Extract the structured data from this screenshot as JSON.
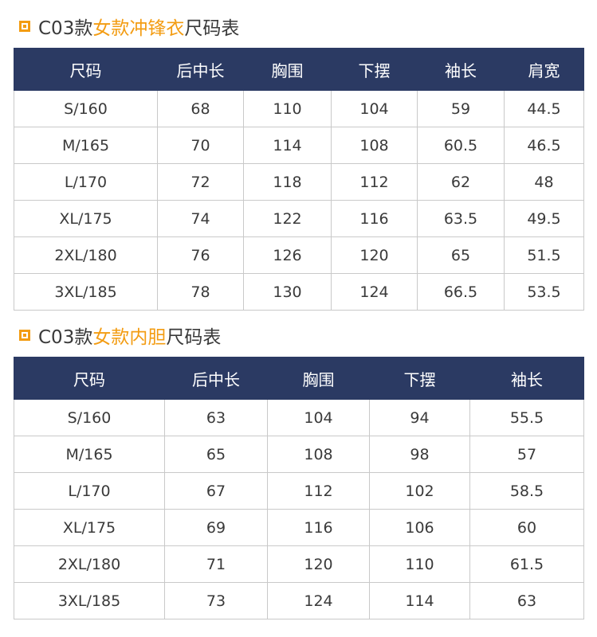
{
  "section1": {
    "title_prefix": "C03款",
    "title_highlight": "女款冲锋衣",
    "title_suffix": "尺码表",
    "headers": [
      "尺码",
      "后中长",
      "胸围",
      "下摆",
      "袖长",
      "肩宽"
    ],
    "rows": [
      [
        "S/160",
        "68",
        "110",
        "104",
        "59",
        "44.5"
      ],
      [
        "M/165",
        "70",
        "114",
        "108",
        "60.5",
        "46.5"
      ],
      [
        "L/170",
        "72",
        "118",
        "112",
        "62",
        "48"
      ],
      [
        "XL/175",
        "74",
        "122",
        "116",
        "63.5",
        "49.5"
      ],
      [
        "2XL/180",
        "76",
        "126",
        "120",
        "65",
        "51.5"
      ],
      [
        "3XL/185",
        "78",
        "130",
        "124",
        "66.5",
        "53.5"
      ]
    ]
  },
  "section2": {
    "title_prefix": "C03款",
    "title_highlight": "女款内胆",
    "title_suffix": "尺码表",
    "headers": [
      "尺码",
      "后中长",
      "胸围",
      "下摆",
      "袖长"
    ],
    "rows": [
      [
        "S/160",
        "63",
        "104",
        "94",
        "55.5"
      ],
      [
        "M/165",
        "65",
        "108",
        "98",
        "57"
      ],
      [
        "L/170",
        "67",
        "112",
        "102",
        "58.5"
      ],
      [
        "XL/175",
        "69",
        "116",
        "106",
        "60"
      ],
      [
        "2XL/180",
        "71",
        "120",
        "110",
        "61.5"
      ],
      [
        "3XL/185",
        "73",
        "124",
        "114",
        "63"
      ]
    ]
  },
  "colors": {
    "header_bg": "#2b3a63",
    "accent": "#f39c12",
    "border": "#c9c9c9"
  }
}
